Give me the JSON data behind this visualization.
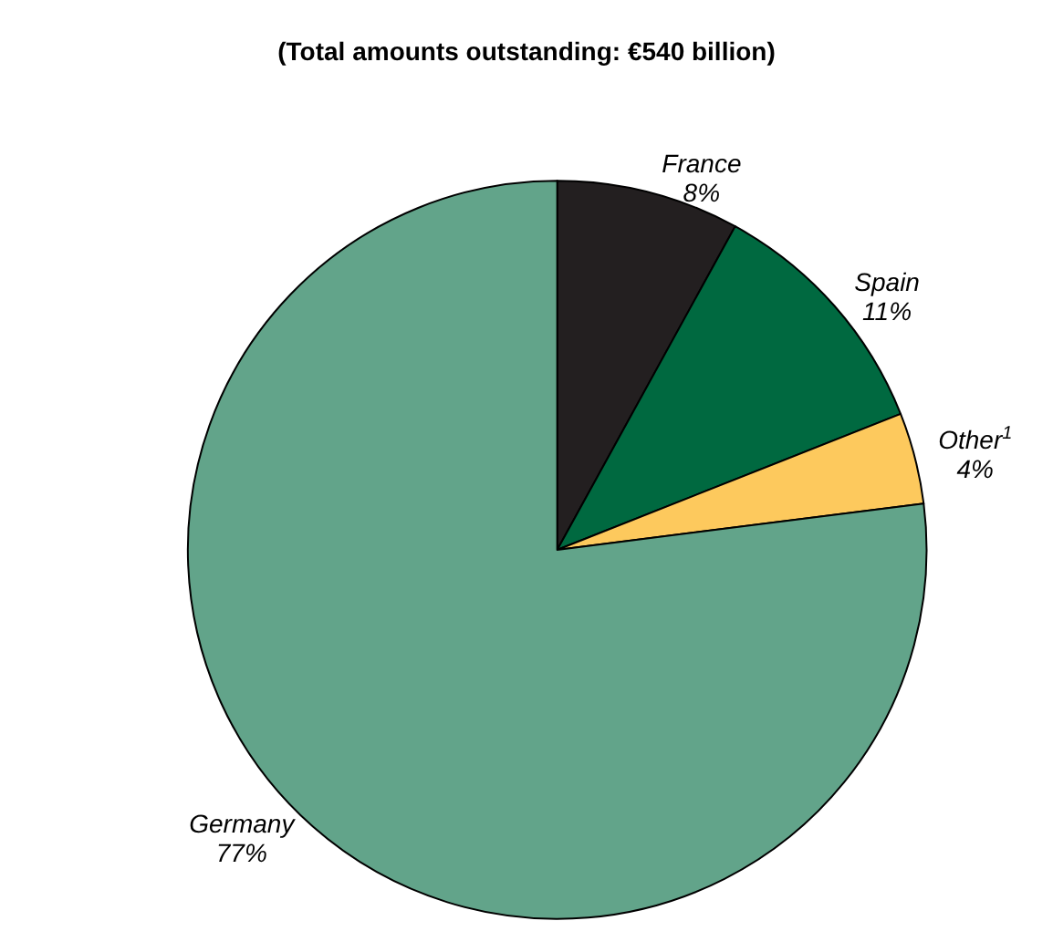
{
  "chart_data": {
    "type": "pie",
    "title": "(Total amounts outstanding: €540 billion)",
    "categories": [
      "France",
      "Spain",
      "Other$^{1}$",
      "Germany"
    ],
    "values": [
      8,
      11,
      4,
      77
    ],
    "colors": [
      "#231f20",
      "#006940",
      "#fdc95d",
      "#62a48a"
    ],
    "value_labels": [
      "8%",
      "11%",
      "4%",
      "77%"
    ],
    "legend": false
  }
}
